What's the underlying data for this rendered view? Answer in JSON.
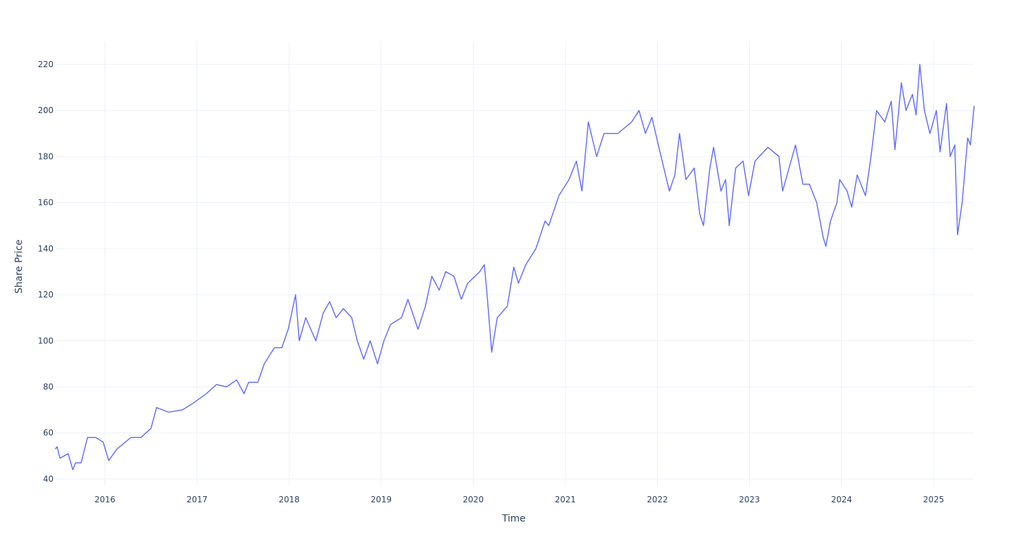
{
  "chart_data": {
    "type": "line",
    "xlabel": "Time",
    "ylabel": "Share Price",
    "color": "#636efa",
    "grid": true,
    "xlim": [
      2015.463,
      2025.44
    ],
    "ylim": [
      36.7,
      230.1
    ],
    "xticks": [
      2016,
      2017,
      2018,
      2019,
      2020,
      2021,
      2022,
      2023,
      2024,
      2025
    ],
    "yticks": [
      40,
      60,
      80,
      100,
      120,
      140,
      160,
      180,
      200,
      220
    ],
    "x": [
      2015.46,
      2015.48,
      2015.51,
      2015.6,
      2015.65,
      2015.68,
      2015.74,
      2015.81,
      2015.9,
      2015.98,
      2016.04,
      2016.13,
      2016.28,
      2016.39,
      2016.5,
      2016.56,
      2016.69,
      2016.84,
      2016.96,
      2017.1,
      2017.21,
      2017.32,
      2017.43,
      2017.51,
      2017.56,
      2017.66,
      2017.73,
      2017.84,
      2017.92,
      2017.99,
      2018.07,
      2018.11,
      2018.18,
      2018.29,
      2018.37,
      2018.44,
      2018.51,
      2018.59,
      2018.68,
      2018.74,
      2018.81,
      2018.88,
      2018.96,
      2019.03,
      2019.1,
      2019.22,
      2019.29,
      2019.4,
      2019.48,
      2019.55,
      2019.63,
      2019.7,
      2019.79,
      2019.87,
      2019.94,
      2020.07,
      2020.12,
      2020.15,
      2020.2,
      2020.26,
      2020.37,
      2020.44,
      2020.49,
      2020.57,
      2020.68,
      2020.78,
      2020.82,
      2020.93,
      2021.04,
      2021.12,
      2021.18,
      2021.25,
      2021.34,
      2021.42,
      2021.57,
      2021.72,
      2021.8,
      2021.87,
      2021.94,
      2022.01,
      2022.07,
      2022.13,
      2022.19,
      2022.24,
      2022.31,
      2022.4,
      2022.46,
      2022.5,
      2022.57,
      2022.61,
      2022.69,
      2022.74,
      2022.78,
      2022.85,
      2022.93,
      2022.99,
      2023.06,
      2023.2,
      2023.32,
      2023.36,
      2023.43,
      2023.5,
      2023.58,
      2023.65,
      2023.73,
      2023.8,
      2023.83,
      2023.88,
      2023.95,
      2023.98,
      2024.06,
      2024.11,
      2024.17,
      2024.26,
      2024.32,
      2024.38,
      2024.47,
      2024.54,
      2024.58,
      2024.65,
      2024.7,
      2024.77,
      2024.81,
      2024.85,
      2024.9,
      2024.96,
      2025.03,
      2025.07,
      2025.14,
      2025.18,
      2025.23,
      2025.26,
      2025.31,
      2025.37,
      2025.4,
      2025.44
    ],
    "values": [
      53,
      54,
      49,
      51,
      44,
      47,
      47,
      58,
      58,
      56,
      48,
      53,
      58,
      58,
      62,
      71,
      69,
      70,
      73,
      77,
      81,
      80,
      83,
      77,
      82,
      82,
      90,
      97,
      97,
      105,
      120,
      100,
      110,
      100,
      112,
      117,
      110,
      114,
      110,
      100,
      92,
      100,
      90,
      100,
      107,
      110,
      118,
      105,
      115,
      128,
      122,
      130,
      128,
      118,
      125,
      130,
      133,
      120,
      95,
      110,
      115,
      132,
      125,
      133,
      140,
      152,
      150,
      163,
      170,
      178,
      165,
      195,
      180,
      190,
      190,
      195,
      200,
      190,
      197,
      185,
      175,
      165,
      172,
      190,
      170,
      175,
      155,
      150,
      175,
      184,
      165,
      170,
      150,
      175,
      178,
      163,
      178,
      184,
      180,
      165,
      175,
      185,
      168,
      168,
      160,
      145,
      141,
      152,
      160,
      170,
      165,
      158,
      172,
      163,
      180,
      200,
      195,
      204,
      183,
      212,
      200,
      207,
      198,
      220,
      200,
      190,
      200,
      182,
      203,
      180,
      185,
      146,
      160,
      188,
      185,
      202
    ]
  }
}
